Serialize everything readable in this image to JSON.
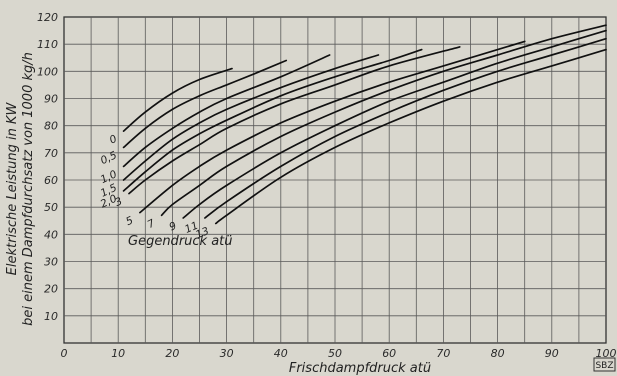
{
  "chart_data": {
    "type": "line",
    "xlabel": "Frischdampfdruck atü",
    "ylabel_line1": "Elektrische Leistung in KW",
    "ylabel_line2": "bei einem Dampfdurchsatz von 1000 kg/h",
    "annotation": "Gegendruck atü",
    "stamp": "SBZ",
    "xlim": [
      0,
      100
    ],
    "ylim": [
      0,
      120
    ],
    "x_ticks": [
      0,
      10,
      20,
      30,
      40,
      50,
      60,
      70,
      80,
      90,
      100
    ],
    "y_ticks": [
      10,
      20,
      30,
      40,
      50,
      60,
      70,
      80,
      90,
      100,
      110,
      120
    ],
    "grid_x_step": 5,
    "grid_y_step": 10,
    "grid": true,
    "series": [
      {
        "name": "0",
        "x": [
          11,
          15,
          20,
          25,
          31
        ],
        "y": [
          78,
          85,
          92,
          97,
          101
        ]
      },
      {
        "name": "0,5",
        "x": [
          11,
          15,
          20,
          25,
          30,
          35,
          41
        ],
        "y": [
          72,
          79,
          86,
          91,
          95,
          99,
          104
        ]
      },
      {
        "name": "1,0",
        "x": [
          11,
          15,
          20,
          25,
          30,
          40,
          49
        ],
        "y": [
          65,
          72,
          79,
          85,
          90,
          98,
          106
        ]
      },
      {
        "name": "1,5",
        "x": [
          11,
          15,
          20,
          25,
          30,
          40,
          50,
          58
        ],
        "y": [
          60,
          67,
          75,
          81,
          86,
          94,
          101,
          106
        ]
      },
      {
        "name": "2,0",
        "x": [
          11,
          15,
          20,
          25,
          30,
          40,
          50,
          60,
          66
        ],
        "y": [
          56,
          63,
          71,
          77,
          82,
          91,
          98,
          104,
          108
        ]
      },
      {
        "name": "3",
        "x": [
          12,
          15,
          20,
          25,
          30,
          40,
          50,
          60,
          73
        ],
        "y": [
          55,
          60,
          67,
          73,
          79,
          88,
          95,
          102,
          109
        ]
      },
      {
        "name": "5",
        "x": [
          14,
          20,
          25,
          30,
          40,
          50,
          60,
          70,
          85
        ],
        "y": [
          48,
          58,
          65,
          71,
          81,
          89,
          96,
          102,
          111
        ]
      },
      {
        "name": "7",
        "x": [
          18,
          20,
          25,
          30,
          40,
          50,
          60,
          70,
          80,
          90,
          100
        ],
        "y": [
          47,
          51,
          58,
          65,
          76,
          85,
          93,
          100,
          106,
          112,
          117
        ]
      },
      {
        "name": "9",
        "x": [
          22,
          25,
          30,
          40,
          50,
          60,
          70,
          80,
          90,
          100
        ],
        "y": [
          46,
          51,
          58,
          70,
          80,
          89,
          96,
          103,
          109,
          115
        ]
      },
      {
        "name": "11",
        "x": [
          26,
          30,
          40,
          50,
          60,
          70,
          80,
          90,
          100
        ],
        "y": [
          46,
          52,
          65,
          76,
          85,
          93,
          100,
          106,
          112
        ]
      },
      {
        "name": "13",
        "x": [
          28,
          30,
          40,
          50,
          60,
          70,
          80,
          90,
          100
        ],
        "y": [
          44,
          47,
          61,
          72,
          81,
          89,
          96,
          102,
          108
        ]
      }
    ]
  }
}
